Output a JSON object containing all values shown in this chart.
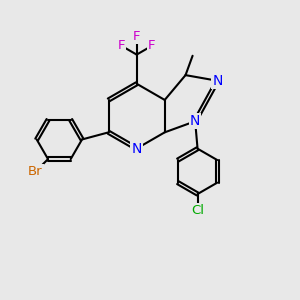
{
  "background_color": "#e8e8e8",
  "bond_color": "#000000",
  "bond_width": 1.5,
  "dbo": 0.055,
  "figsize": [
    3.0,
    3.0
  ],
  "dpi": 100,
  "colors": {
    "N": "#0000ff",
    "F": "#cc00cc",
    "Br": "#cc6600",
    "Cl": "#00aa00",
    "C": "#000000"
  }
}
